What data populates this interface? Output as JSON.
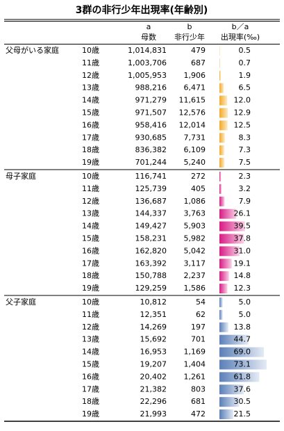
{
  "title": "3群の非行少年出現率(年齢別)",
  "header": {
    "a_letter": "a",
    "b_letter": "b",
    "rate_letter": "b／a",
    "a": "母数",
    "b": "非行少年",
    "rate": "出現率(‰)"
  },
  "groups": [
    {
      "name": "父母がいる家庭",
      "rows": [
        [
          "10歳",
          "1,014,831",
          "479",
          "0.5"
        ],
        [
          "11歳",
          "1,003,706",
          "687",
          "0.7"
        ],
        [
          "12歳",
          "1,005,953",
          "1,906",
          "1.9"
        ],
        [
          "13歳",
          "988,216",
          "6,471",
          "6.5"
        ],
        [
          "14歳",
          "971,279",
          "11,615",
          "12.0"
        ],
        [
          "15歳",
          "971,507",
          "12,576",
          "12.9"
        ],
        [
          "16歳",
          "958,416",
          "12,014",
          "12.5"
        ],
        [
          "17歳",
          "930,685",
          "7,731",
          "8.3"
        ],
        [
          "18歳",
          "836,382",
          "6,109",
          "7.3"
        ],
        [
          "19歳",
          "701,244",
          "5,240",
          "7.5"
        ]
      ]
    },
    {
      "name": "母子家庭",
      "rows": [
        [
          "10歳",
          "116,741",
          "272",
          "2.3"
        ],
        [
          "11歳",
          "125,739",
          "405",
          "3.2"
        ],
        [
          "12歳",
          "136,687",
          "1,086",
          "7.9"
        ],
        [
          "13歳",
          "144,337",
          "3,763",
          "26.1"
        ],
        [
          "14歳",
          "149,427",
          "5,903",
          "39.5"
        ],
        [
          "15歳",
          "158,231",
          "5,982",
          "37.8"
        ],
        [
          "16歳",
          "162,820",
          "5,042",
          "31.0"
        ],
        [
          "17歳",
          "163,392",
          "3,117",
          "19.1"
        ],
        [
          "18歳",
          "150,788",
          "2,237",
          "14.8"
        ],
        [
          "19歳",
          "129,259",
          "1,586",
          "12.3"
        ]
      ]
    },
    {
      "name": "父子家庭",
      "rows": [
        [
          "10歳",
          "10,812",
          "54",
          "5.0"
        ],
        [
          "11歳",
          "12,351",
          "62",
          "5.0"
        ],
        [
          "12歳",
          "14,269",
          "197",
          "13.8"
        ],
        [
          "13歳",
          "15,692",
          "701",
          "44.7"
        ],
        [
          "14歳",
          "16,953",
          "1,169",
          "69.0"
        ],
        [
          "15歳",
          "19,207",
          "1,404",
          "73.1"
        ],
        [
          "16歳",
          "20,402",
          "1,261",
          "61.8"
        ],
        [
          "17歳",
          "21,382",
          "803",
          "37.6"
        ],
        [
          "18歳",
          "22,296",
          "681",
          "30.5"
        ],
        [
          "19歳",
          "21,993",
          "472",
          "21.5"
        ]
      ]
    }
  ]
}
